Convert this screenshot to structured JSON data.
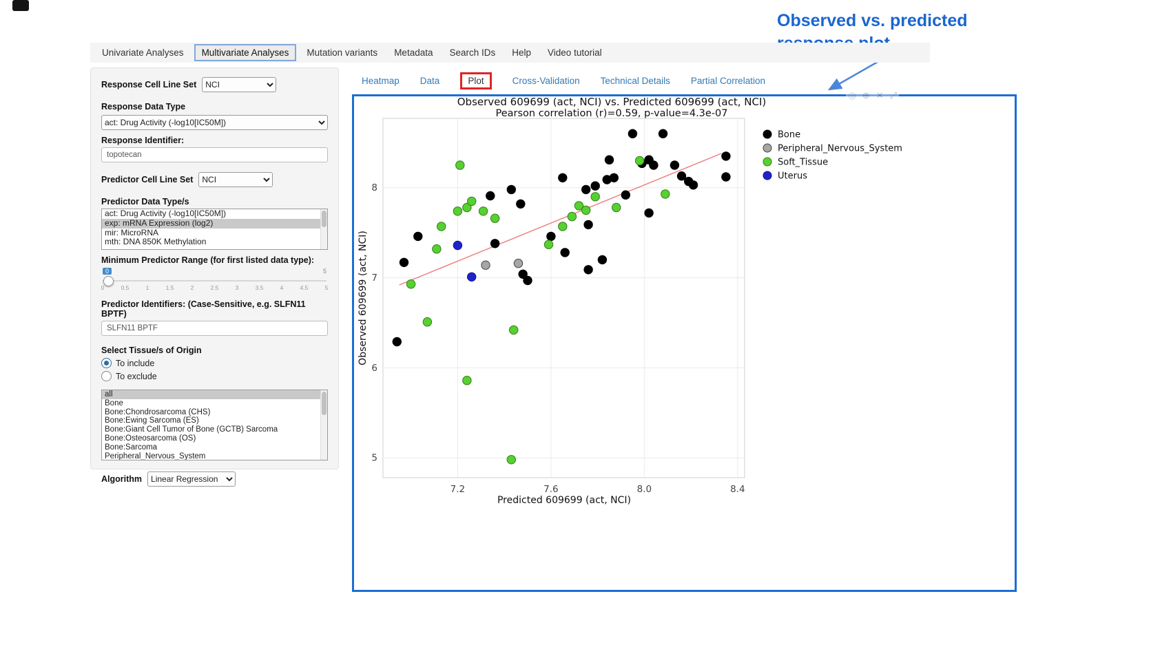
{
  "annotation": {
    "line1": "Observed  vs. predicted",
    "line2": "response plot"
  },
  "nav": {
    "tabs": [
      "Univariate Analyses",
      "Multivariate Analyses",
      "Mutation variants",
      "Metadata",
      "Search IDs",
      "Help",
      "Video tutorial"
    ],
    "active": "Multivariate Analyses"
  },
  "sidebar": {
    "response_cell_line_set": {
      "label": "Response Cell Line Set",
      "value": "NCI"
    },
    "response_data_type": {
      "label": "Response Data Type",
      "value": "act: Drug Activity (-log10[IC50M])"
    },
    "response_identifier": {
      "label": "Response Identifier:",
      "value": "topotecan"
    },
    "predictor_cell_line_set": {
      "label": "Predictor Cell Line Set",
      "value": "NCI"
    },
    "predictor_data_types": {
      "label": "Predictor Data Type/s",
      "options": [
        "act: Drug Activity (-log10[IC50M])",
        "exp: mRNA Expression (log2)",
        "mir: MicroRNA",
        "mth: DNA 850K Methylation"
      ],
      "selected": "exp: mRNA Expression (log2)"
    },
    "min_predictor_range": {
      "label": "Minimum Predictor Range (for first listed data type):",
      "value": "0",
      "max": "5",
      "ticks": [
        "0",
        "0.5",
        "1",
        "1.5",
        "2",
        "2.5",
        "3",
        "3.5",
        "4",
        "4.5",
        "5"
      ]
    },
    "predictor_identifiers": {
      "label": "Predictor Identifiers: (Case-Sensitive, e.g. SLFN11 BPTF)",
      "value": "SLFN11 BPTF"
    },
    "tissue_origin": {
      "label": "Select Tissue/s of Origin",
      "options": [
        {
          "label": "To include",
          "selected": true
        },
        {
          "label": "To exclude",
          "selected": false
        }
      ]
    },
    "tissue_list": {
      "options": [
        "all",
        "Bone",
        "Bone:Chondrosarcoma (CHS)",
        "Bone:Ewing Sarcoma (ES)",
        "Bone:Giant Cell Tumor of Bone (GCTB) Sarcoma",
        "Bone:Osteosarcoma (OS)",
        "Bone:Sarcoma",
        "Peripheral_Nervous_System"
      ],
      "selected": "all"
    },
    "algorithm": {
      "label": "Algorithm",
      "value": "Linear Regression"
    }
  },
  "subtabs": {
    "items": [
      "Heatmap",
      "Data",
      "Plot",
      "Cross-Validation",
      "Technical Details",
      "Partial Correlation"
    ],
    "active": "Plot"
  },
  "modebar": {
    "icons": [
      {
        "name": "camera-icon",
        "glyph": "◎"
      },
      {
        "name": "zoom-icon",
        "glyph": "⊕"
      },
      {
        "name": "close-icon",
        "glyph": "✕"
      },
      {
        "name": "pan-icon",
        "glyph": "⤢"
      }
    ]
  },
  "colors": {
    "accent_blue": "#1b6ed3",
    "annotation_blue": "#1a66cf",
    "tab_highlight_red": "#e02424",
    "link_blue": "#337ab7"
  },
  "chart_data": {
    "type": "scatter",
    "title": "Observed 609699 (act, NCI) vs. Predicted 609699 (act, NCI)",
    "subtitle": "Pearson correlation (r)=0.59, p-value=4.3e-07",
    "xlabel": "Predicted 609699 (act, NCI)",
    "ylabel": "Observed 609699 (act, NCI)",
    "xlim": [
      6.88,
      8.43
    ],
    "ylim": [
      4.78,
      8.77
    ],
    "xticks": [
      "7.2",
      "7.6",
      "8.0",
      "8.4"
    ],
    "yticks": [
      "5",
      "6",
      "7",
      "8"
    ],
    "grid": true,
    "legend_position": "right",
    "regression_line": {
      "x1": 6.95,
      "y1": 6.92,
      "x2": 8.33,
      "y2": 8.38,
      "color": "#ee7a7a"
    },
    "series": [
      {
        "name": "Bone",
        "color": "#000000",
        "stroke": "#000000",
        "points": [
          [
            6.94,
            6.29
          ],
          [
            6.97,
            7.17
          ],
          [
            7.03,
            7.46
          ],
          [
            7.34,
            7.91
          ],
          [
            7.36,
            7.38
          ],
          [
            7.43,
            7.98
          ],
          [
            7.47,
            7.82
          ],
          [
            7.48,
            7.04
          ],
          [
            7.5,
            6.97
          ],
          [
            7.6,
            7.46
          ],
          [
            7.65,
            8.11
          ],
          [
            7.66,
            7.28
          ],
          [
            7.75,
            7.98
          ],
          [
            7.76,
            7.59
          ],
          [
            7.76,
            7.09
          ],
          [
            7.79,
            8.02
          ],
          [
            7.82,
            7.2
          ],
          [
            7.84,
            8.09
          ],
          [
            7.85,
            8.31
          ],
          [
            7.87,
            8.11
          ],
          [
            7.92,
            7.92
          ],
          [
            7.95,
            8.6
          ],
          [
            7.99,
            8.27
          ],
          [
            8.02,
            8.31
          ],
          [
            8.02,
            7.72
          ],
          [
            8.04,
            8.25
          ],
          [
            8.08,
            8.6
          ],
          [
            8.13,
            8.25
          ],
          [
            8.16,
            8.13
          ],
          [
            8.19,
            8.07
          ],
          [
            8.21,
            8.03
          ],
          [
            8.35,
            8.35
          ],
          [
            8.35,
            8.12
          ]
        ]
      },
      {
        "name": "Peripheral_Nervous_System",
        "color": "#a6a6a6",
        "stroke": "#444444",
        "points": [
          [
            7.32,
            7.14
          ],
          [
            7.46,
            7.16
          ]
        ]
      },
      {
        "name": "Soft_Tissue",
        "color": "#57d131",
        "stroke": "#2f7d12",
        "points": [
          [
            7.21,
            8.25
          ],
          [
            7.13,
            7.57
          ],
          [
            7.2,
            7.74
          ],
          [
            7.24,
            7.78
          ],
          [
            7.26,
            7.85
          ],
          [
            7.31,
            7.74
          ],
          [
            7.36,
            7.66
          ],
          [
            7.11,
            7.32
          ],
          [
            7.0,
            6.93
          ],
          [
            7.07,
            6.51
          ],
          [
            7.24,
            5.86
          ],
          [
            7.43,
            4.98
          ],
          [
            7.44,
            6.42
          ],
          [
            7.59,
            7.37
          ],
          [
            7.65,
            7.57
          ],
          [
            7.69,
            7.68
          ],
          [
            7.72,
            7.8
          ],
          [
            7.75,
            7.75
          ],
          [
            7.79,
            7.9
          ],
          [
            7.88,
            7.78
          ],
          [
            7.98,
            8.3
          ],
          [
            8.09,
            7.93
          ]
        ]
      },
      {
        "name": "Uterus",
        "color": "#2222cc",
        "stroke": "#11118a",
        "points": [
          [
            7.2,
            7.36
          ],
          [
            7.26,
            7.01
          ]
        ]
      }
    ]
  }
}
